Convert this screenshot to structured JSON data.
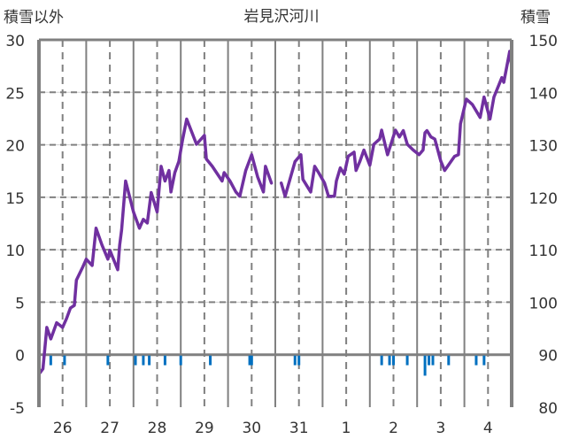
{
  "chart_data": {
    "type": "line",
    "title": "岩見沢河川",
    "ylabel_left": "積雪以外",
    "ylabel_right": "積雪",
    "xlabel": "",
    "x_unit": "hours from start of day 26",
    "xlim": [
      0,
      240
    ],
    "ylim_left": [
      -5,
      30
    ],
    "ylim_right": [
      80,
      150
    ],
    "yticks_left": [
      -5,
      0,
      5,
      10,
      15,
      20,
      25,
      30
    ],
    "yticks_right": [
      80,
      90,
      100,
      110,
      120,
      130,
      140,
      150
    ],
    "xtick_labels": [
      "26",
      "27",
      "28",
      "29",
      "30",
      "31",
      "1",
      "2",
      "3",
      "4"
    ],
    "grid": true,
    "colors": {
      "snow": "#7030A0",
      "bars": "#0070C0",
      "grid": "#808080"
    },
    "series": [
      {
        "name": "積雪",
        "axis": "right",
        "points": [
          [
            0,
            86.3
          ],
          [
            2,
            87.3
          ],
          [
            4,
            95.2
          ],
          [
            6,
            93.0
          ],
          [
            9,
            96.1
          ],
          [
            12,
            95.2
          ],
          [
            14,
            96.9
          ],
          [
            16,
            98.9
          ],
          [
            18,
            99.4
          ],
          [
            19,
            104.2
          ],
          [
            22,
            106.5
          ],
          [
            24,
            108.2
          ],
          [
            27,
            107.0
          ],
          [
            29,
            114.1
          ],
          [
            32,
            110.9
          ],
          [
            35,
            108.2
          ],
          [
            36,
            109.9
          ],
          [
            40,
            106.2
          ],
          [
            41,
            110.9
          ],
          [
            42,
            113.8
          ],
          [
            44,
            123.1
          ],
          [
            48,
            117.2
          ],
          [
            51,
            114.1
          ],
          [
            53,
            115.8
          ],
          [
            55,
            115.1
          ],
          [
            57,
            120.9
          ],
          [
            60,
            117.2
          ],
          [
            62,
            125.9
          ],
          [
            64,
            123.1
          ],
          [
            66,
            125.1
          ],
          [
            67,
            121.0
          ],
          [
            69,
            124.7
          ],
          [
            71,
            126.8
          ],
          [
            73,
            131.1
          ],
          [
            75,
            134.9
          ],
          [
            80,
            130.1
          ],
          [
            84,
            131.8
          ],
          [
            85,
            127.3
          ],
          [
            88,
            125.9
          ],
          [
            93,
            123.1
          ],
          [
            94,
            124.7
          ],
          [
            97,
            123.1
          ],
          [
            100,
            121.0
          ],
          [
            102,
            120.2
          ],
          [
            105,
            125.1
          ],
          [
            108,
            128.1
          ],
          [
            111,
            123.9
          ],
          [
            114,
            121.0
          ],
          [
            115,
            125.9
          ],
          [
            118,
            122.7
          ],
          [
            120,
            null
          ],
          [
            123,
            122.7
          ],
          [
            125,
            120.2
          ],
          [
            130,
            126.8
          ],
          [
            133,
            128.1
          ],
          [
            134,
            123.4
          ],
          [
            138,
            121.0
          ],
          [
            140,
            125.9
          ],
          [
            142,
            124.7
          ],
          [
            145,
            122.7
          ],
          [
            147,
            120.2
          ],
          [
            150,
            120.2
          ],
          [
            151,
            123.1
          ],
          [
            153,
            125.6
          ],
          [
            155,
            124.4
          ],
          [
            157,
            127.8
          ],
          [
            160,
            128.6
          ],
          [
            161,
            125.1
          ],
          [
            163,
            126.9
          ],
          [
            165,
            129.0
          ],
          [
            168,
            126.1
          ],
          [
            170,
            130.1
          ],
          [
            173,
            131.1
          ],
          [
            174,
            132.8
          ],
          [
            177,
            128.1
          ],
          [
            181,
            132.8
          ],
          [
            183,
            131.5
          ],
          [
            185,
            132.7
          ],
          [
            187,
            130.1
          ],
          [
            190,
            129.0
          ],
          [
            193,
            128.1
          ],
          [
            195,
            129.0
          ],
          [
            196,
            132.3
          ],
          [
            197,
            132.7
          ],
          [
            199,
            131.5
          ],
          [
            201,
            131.1
          ],
          [
            204,
            126.9
          ],
          [
            206,
            125.1
          ],
          [
            211,
            127.8
          ],
          [
            213,
            128.1
          ],
          [
            214,
            134.0
          ],
          [
            217,
            138.7
          ],
          [
            220,
            137.7
          ],
          [
            224,
            135.2
          ],
          [
            226,
            139.1
          ],
          [
            229,
            134.9
          ],
          [
            231,
            139.1
          ],
          [
            235,
            142.8
          ],
          [
            236,
            141.9
          ],
          [
            239,
            147.8
          ],
          [
            240,
            145.0
          ]
        ]
      },
      {
        "name": "積雪以外",
        "axis": "left",
        "type": "bar",
        "points": [
          [
            6,
            -1
          ],
          [
            13,
            -1
          ],
          [
            35,
            -1
          ],
          [
            49,
            -1
          ],
          [
            53,
            -1
          ],
          [
            56,
            -1
          ],
          [
            64,
            -1
          ],
          [
            72,
            -1
          ],
          [
            87,
            -1
          ],
          [
            107,
            -1
          ],
          [
            108,
            -1
          ],
          [
            130,
            -1
          ],
          [
            132,
            -1
          ],
          [
            174,
            -1
          ],
          [
            178,
            -1
          ],
          [
            180,
            -1
          ],
          [
            187,
            -1
          ],
          [
            196,
            -2
          ],
          [
            198,
            -1
          ],
          [
            200,
            -1
          ],
          [
            208,
            -1
          ],
          [
            222,
            -1
          ],
          [
            226,
            -1
          ]
        ]
      }
    ]
  }
}
